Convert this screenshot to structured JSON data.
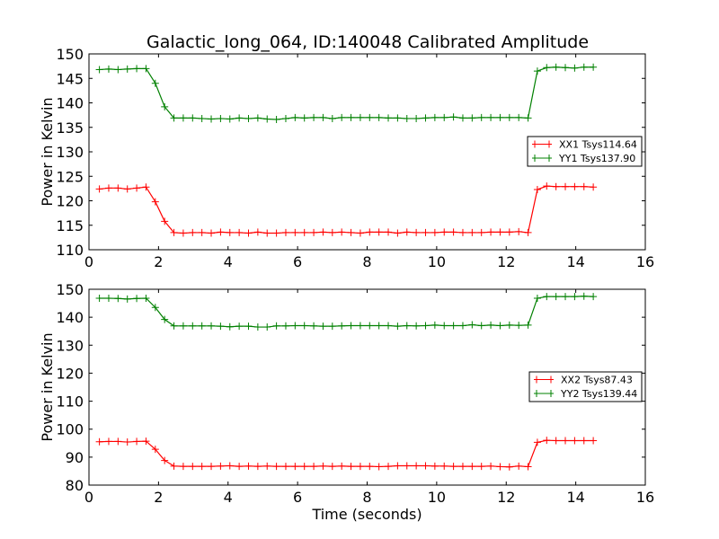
{
  "title": "Galactic_long_064, ID:140048 Calibrated Amplitude",
  "chart_data": [
    {
      "type": "line",
      "title": "Galactic_long_064, ID:140048 Calibrated Amplitude",
      "xlabel": "",
      "ylabel": "Power in Kelvin",
      "xlim": [
        0,
        16
      ],
      "ylim": [
        110,
        150
      ],
      "xticks": [
        0,
        2,
        4,
        6,
        8,
        10,
        12,
        14,
        16
      ],
      "yticks": [
        110,
        115,
        120,
        125,
        130,
        135,
        140,
        145,
        150
      ],
      "legend_position": "center-right",
      "x_start": 0.3,
      "x_step": 0.268,
      "series": [
        {
          "name": "XX1 Tsys114.64",
          "color": "#ff0000",
          "values": [
            122.4,
            122.6,
            122.6,
            122.4,
            122.6,
            122.8,
            119.8,
            115.8,
            113.5,
            113.4,
            113.5,
            113.5,
            113.4,
            113.6,
            113.5,
            113.5,
            113.4,
            113.6,
            113.4,
            113.4,
            113.5,
            113.5,
            113.5,
            113.5,
            113.6,
            113.5,
            113.6,
            113.5,
            113.4,
            113.6,
            113.6,
            113.6,
            113.4,
            113.6,
            113.5,
            113.5,
            113.5,
            113.6,
            113.6,
            113.5,
            113.5,
            113.5,
            113.6,
            113.6,
            113.6,
            113.7,
            113.5,
            122.3,
            123.0,
            122.9,
            122.9,
            122.9,
            122.9,
            122.8
          ]
        },
        {
          "name": "YY1 Tsys137.90",
          "color": "#008000",
          "values": [
            146.8,
            146.9,
            146.8,
            146.9,
            147.0,
            147.0,
            144.0,
            139.2,
            136.9,
            136.9,
            136.9,
            136.8,
            136.7,
            136.8,
            136.7,
            136.9,
            136.8,
            136.9,
            136.7,
            136.6,
            136.8,
            137.0,
            136.9,
            137.0,
            137.0,
            136.8,
            137.0,
            137.0,
            137.0,
            137.0,
            137.0,
            136.9,
            136.9,
            136.8,
            136.8,
            136.9,
            137.0,
            137.0,
            137.1,
            136.9,
            136.9,
            137.0,
            137.0,
            137.0,
            137.0,
            137.0,
            136.9,
            146.5,
            147.2,
            147.3,
            147.2,
            147.1,
            147.3,
            147.3
          ]
        }
      ]
    },
    {
      "type": "line",
      "title": "",
      "xlabel": "Time (seconds)",
      "ylabel": "Power in Kelvin",
      "xlim": [
        0,
        16
      ],
      "ylim": [
        80,
        150
      ],
      "xticks": [
        0,
        2,
        4,
        6,
        8,
        10,
        12,
        14,
        16
      ],
      "yticks": [
        80,
        90,
        100,
        110,
        120,
        130,
        140,
        150
      ],
      "legend_position": "center-right",
      "x_start": 0.3,
      "x_step": 0.268,
      "series": [
        {
          "name": "XX2 Tsys87.43",
          "color": "#ff0000",
          "values": [
            95.5,
            95.6,
            95.6,
            95.4,
            95.6,
            95.7,
            92.8,
            88.8,
            86.8,
            86.7,
            86.7,
            86.7,
            86.7,
            86.8,
            86.9,
            86.7,
            86.8,
            86.7,
            86.8,
            86.7,
            86.7,
            86.7,
            86.7,
            86.7,
            86.8,
            86.7,
            86.8,
            86.7,
            86.7,
            86.7,
            86.6,
            86.7,
            86.9,
            86.9,
            86.9,
            86.9,
            86.8,
            86.8,
            86.7,
            86.7,
            86.7,
            86.7,
            86.8,
            86.6,
            86.5,
            86.8,
            86.6,
            95.3,
            96.0,
            95.9,
            95.9,
            95.9,
            95.9,
            95.9
          ]
        },
        {
          "name": "YY2 Tsys139.44",
          "color": "#008000",
          "values": [
            146.8,
            146.8,
            146.7,
            146.5,
            146.7,
            146.8,
            143.5,
            139.2,
            136.9,
            136.9,
            136.9,
            136.9,
            136.9,
            136.8,
            136.6,
            136.8,
            136.8,
            136.5,
            136.5,
            136.9,
            136.9,
            137.0,
            137.0,
            136.9,
            136.8,
            136.8,
            136.9,
            137.0,
            137.0,
            137.0,
            137.0,
            137.0,
            136.8,
            137.0,
            136.9,
            137.0,
            137.2,
            137.0,
            137.0,
            137.0,
            137.3,
            137.0,
            137.2,
            137.0,
            137.2,
            137.1,
            137.2,
            146.8,
            147.4,
            147.4,
            147.4,
            147.4,
            147.5,
            147.4
          ]
        }
      ]
    }
  ]
}
